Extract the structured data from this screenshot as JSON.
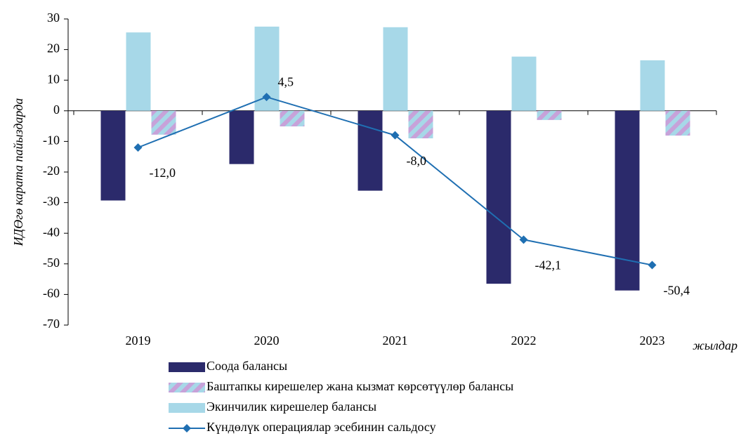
{
  "chart_data": {
    "type": "bar",
    "y_label": "ИДӨгө карата пайыздарда",
    "x_label": "жылдар",
    "categories": [
      "2019",
      "2020",
      "2021",
      "2022",
      "2023"
    ],
    "series": [
      {
        "name": "Соода балансы",
        "color": "#2b2a6b",
        "pattern": false,
        "values": [
          -29.3,
          -17.4,
          -26.1,
          -56.5,
          -58.7
        ]
      },
      {
        "name": "Экинчилик кирешелер балансы",
        "color": "#a7d8e8",
        "pattern": false,
        "values": [
          25.6,
          27.5,
          27.3,
          17.7,
          16.5
        ]
      },
      {
        "name": "Баштапкы кирешелер жана кызмат көрсөтүүлөр балансы",
        "color": "#c7a2d9",
        "pattern": true,
        "values": [
          -7.8,
          -5.1,
          -9.0,
          -3.0,
          -8.1
        ]
      },
      {
        "name": "Күндөлүк операциялар эсебинин сальдосу",
        "color": "#1f6fb2",
        "type": "line",
        "values": [
          -12.0,
          4.5,
          -8.0,
          -42.1,
          -50.4
        ],
        "value_labels": [
          "-12,0",
          "4,5",
          "-8,0",
          "-42,1",
          "-50,4"
        ]
      }
    ],
    "legend_order": [
      0,
      2,
      1,
      3
    ],
    "ylim": [
      -70,
      30
    ],
    "yticks": [
      -70,
      -60,
      -50,
      -40,
      -30,
      -20,
      -10,
      0,
      10,
      20,
      30
    ]
  }
}
